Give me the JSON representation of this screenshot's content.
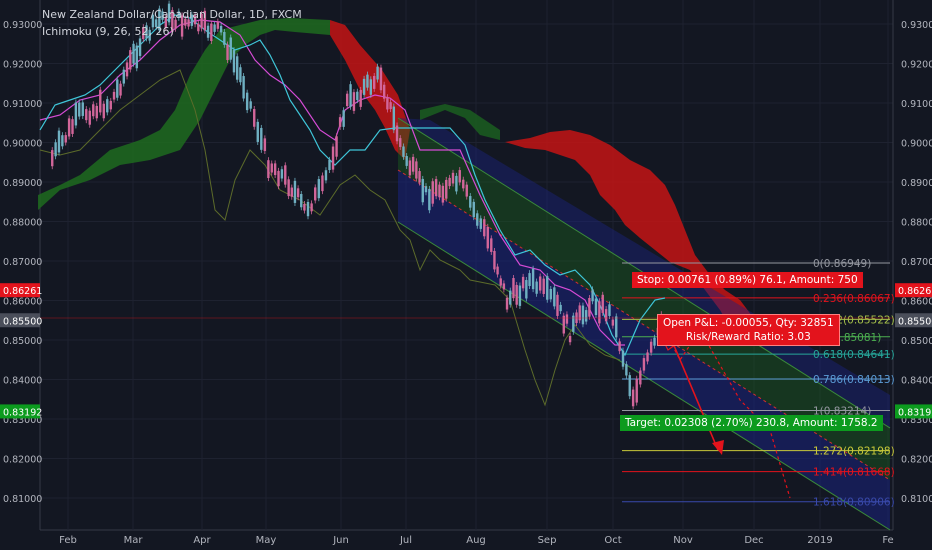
{
  "header": {
    "title": "New Zealand Dollar/Canadian Dollar, 1D, FXCM",
    "indicator": "Ichimoku (9, 26, 52, 26)"
  },
  "colors": {
    "background": "#131722",
    "price_tag_red": "#e3131c",
    "price_tag_green": "#0c9b1e",
    "price_tag_current": "#4a4e5a",
    "candle_up": "#6fb0c2",
    "candle_down": "#d2669a",
    "tenkan": "#3fc6d9",
    "kijun": "#d93fd9",
    "chikou": "#6b7a2f",
    "cloud_bull": "#1f7a1f",
    "cloud_bear": "#c21414",
    "channel_green": "#2e7d32",
    "channel_blue": "#1a237e"
  },
  "positions": {
    "stop": "Stop: 0.00761 (0.89%) 76.1, Amount: 750",
    "open_line1": "Open P&L: -0.00055, Qty: 32851",
    "open_line2": "Risk/Reward Ratio: 3.03",
    "target": "Target: 0.02308 (2.70%) 230.8, Amount: 1758.2"
  },
  "chart_data": {
    "type": "candlestick",
    "title": "New Zealand Dollar/Canadian Dollar, 1D, FXCM",
    "ylim": [
      0.804,
      0.936
    ],
    "y_ticks": [
      "0.81000",
      "0.82000",
      "0.83000",
      "0.84000",
      "0.85000",
      "0.86000",
      "0.87000",
      "0.88000",
      "0.89000",
      "0.90000",
      "0.91000",
      "0.92000",
      "0.93000"
    ],
    "x_ticks": [
      "Feb",
      "Mar",
      "Apr",
      "May",
      "Jun",
      "Jul",
      "Aug",
      "Sep",
      "Oct",
      "Nov",
      "Dec",
      "2019",
      "Fe"
    ],
    "price_tags": [
      {
        "value": 0.86261,
        "label": "0.86261",
        "role": "stop"
      },
      {
        "value": 0.855,
        "label": "0.85500",
        "role": "current"
      },
      {
        "value": 0.83192,
        "label": "0.83192",
        "role": "target"
      }
    ],
    "fibonacci": [
      {
        "ratio": "0",
        "value": 0.86949,
        "label": "0(0.86949)",
        "color": "#9598a1"
      },
      {
        "ratio": "0.236",
        "value": 0.86067,
        "label": "0.236(0.86067)",
        "color": "#e3131c"
      },
      {
        "ratio": "0.382",
        "value": 0.85522,
        "label": "0.382(0.85522)",
        "color": "#a5c04a"
      },
      {
        "ratio": "0.5",
        "value": 0.85081,
        "label": "0.5(0.85081)",
        "color": "#4caf50"
      },
      {
        "ratio": "0.618",
        "value": 0.84641,
        "label": "0.618(0.84641)",
        "color": "#26a69a"
      },
      {
        "ratio": "0.786",
        "value": 0.84013,
        "label": "0.786(0.84013)",
        "color": "#5b9bd5"
      },
      {
        "ratio": "1",
        "value": 0.83214,
        "label": "1(0.83214)",
        "color": "#9598a1"
      },
      {
        "ratio": "1.272",
        "value": 0.82198,
        "label": "1.272(0.82198)",
        "color": "#c9c93a"
      },
      {
        "ratio": "1.414",
        "value": 0.81668,
        "label": "1.414(0.81668)",
        "color": "#e3131c"
      },
      {
        "ratio": "1.618",
        "value": 0.80906,
        "label": "1.618(0.80906)",
        "color": "#3949ab"
      }
    ],
    "price_close_path": [
      {
        "x": "2018-01-25",
        "y": 0.896
      },
      {
        "x": "2018-02-06",
        "y": 0.907
      },
      {
        "x": "2018-02-20",
        "y": 0.91
      },
      {
        "x": "2018-03-05",
        "y": 0.925
      },
      {
        "x": "2018-03-15",
        "y": 0.932
      },
      {
        "x": "2018-03-28",
        "y": 0.93
      },
      {
        "x": "2018-04-10",
        "y": 0.928
      },
      {
        "x": "2018-04-20",
        "y": 0.915
      },
      {
        "x": "2018-05-01",
        "y": 0.895
      },
      {
        "x": "2018-05-10",
        "y": 0.89
      },
      {
        "x": "2018-05-17",
        "y": 0.883
      },
      {
        "x": "2018-05-25",
        "y": 0.888
      },
      {
        "x": "2018-06-05",
        "y": 0.91
      },
      {
        "x": "2018-06-20",
        "y": 0.917
      },
      {
        "x": "2018-06-30",
        "y": 0.897
      },
      {
        "x": "2018-07-10",
        "y": 0.887
      },
      {
        "x": "2018-07-25",
        "y": 0.89
      },
      {
        "x": "2018-08-08",
        "y": 0.874
      },
      {
        "x": "2018-08-15",
        "y": 0.86
      },
      {
        "x": "2018-08-25",
        "y": 0.865
      },
      {
        "x": "2018-09-05",
        "y": 0.86
      },
      {
        "x": "2018-09-12",
        "y": 0.852
      },
      {
        "x": "2018-09-22",
        "y": 0.86
      },
      {
        "x": "2018-10-01",
        "y": 0.856
      },
      {
        "x": "2018-10-10",
        "y": 0.836
      },
      {
        "x": "2018-10-18",
        "y": 0.847
      },
      {
        "x": "2018-10-24",
        "y": 0.855
      }
    ]
  }
}
